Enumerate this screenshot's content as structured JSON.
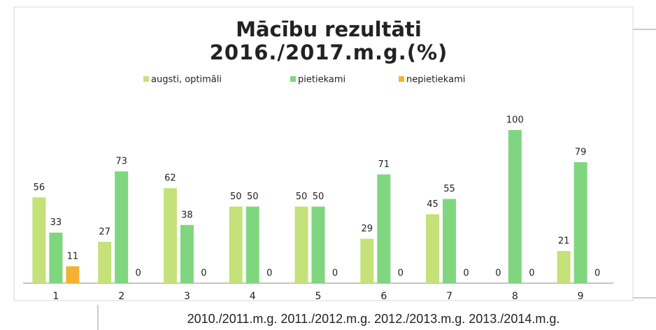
{
  "chart_data": {
    "type": "bar",
    "title": [
      "Mācību rezultāti",
      "2016./2017.m.g.(%)"
    ],
    "categories": [
      "1",
      "2",
      "3",
      "4",
      "5",
      "6",
      "7",
      "8",
      "9"
    ],
    "series": [
      {
        "name": "augsti, optimāli",
        "color": "#c5e17a",
        "values": [
          56,
          27,
          62,
          50,
          50,
          29,
          45,
          0,
          21
        ]
      },
      {
        "name": "pietiekami",
        "color": "#7fd67f",
        "values": [
          33,
          73,
          38,
          50,
          50,
          71,
          55,
          100,
          79
        ]
      },
      {
        "name": "nepietiekami",
        "color": "#f5b133",
        "values": [
          11,
          0,
          0,
          0,
          0,
          0,
          0,
          0,
          0
        ]
      }
    ]
  },
  "footer": "2010./2011.m.g. 2011./2012.m.g. 2012./2013.m.g. 2013./2014.m.g."
}
